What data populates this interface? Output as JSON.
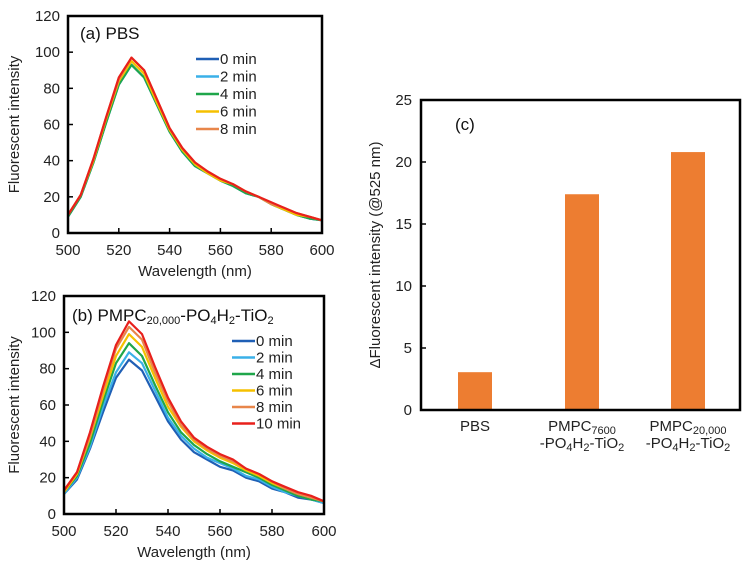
{
  "chart_data": [
    {
      "type": "line",
      "title": "(a) PBS",
      "xlabel": "Wavelength  (nm)",
      "ylabel": "Fluorescent intensity",
      "xlim": [
        500,
        600
      ],
      "ylim": [
        0,
        120
      ],
      "xticks": [
        500,
        520,
        540,
        560,
        580,
        600
      ],
      "yticks": [
        0,
        20,
        40,
        60,
        80,
        100,
        120
      ],
      "legend_position": "top-right",
      "x": [
        500,
        505,
        510,
        515,
        520,
        525,
        530,
        535,
        540,
        545,
        550,
        555,
        560,
        565,
        570,
        575,
        580,
        585,
        590,
        595,
        600
      ],
      "series": [
        {
          "name": "0 min",
          "color": "#1f5fb5",
          "values": [
            9,
            20,
            39,
            61,
            82,
            93,
            86,
            71,
            56,
            45,
            37,
            33,
            29,
            26,
            22,
            20,
            16,
            13,
            10,
            8,
            7
          ]
        },
        {
          "name": "2 min",
          "color": "#3ab0e8",
          "values": [
            9,
            20,
            39,
            61,
            82,
            93,
            86,
            71,
            56,
            45,
            37,
            33,
            29,
            26,
            22,
            20,
            16,
            13,
            10,
            8,
            7
          ]
        },
        {
          "name": "4 min",
          "color": "#1fa64a",
          "values": [
            9,
            20,
            39,
            61,
            82,
            93,
            86,
            71,
            56,
            45,
            37,
            33,
            29,
            26,
            22,
            20,
            16,
            13,
            10,
            8,
            7
          ]
        },
        {
          "name": "6 min",
          "color": "#f5c000",
          "values": [
            10,
            21,
            40,
            63,
            84,
            95,
            88,
            72,
            57,
            46,
            38,
            33,
            29,
            27,
            23,
            20,
            16,
            13,
            10,
            9,
            7
          ]
        },
        {
          "name": "8 min",
          "color": "#e8864a",
          "values": [
            10,
            21,
            41,
            64,
            85,
            97,
            90,
            74,
            58,
            47,
            39,
            34,
            30,
            27,
            23,
            20,
            16,
            14,
            11,
            9,
            7
          ]
        },
        {
          "name": "",
          "color": "#e8201c",
          "values": [
            10,
            21,
            41,
            64,
            86,
            97,
            90,
            74,
            58,
            47,
            39,
            34,
            30,
            27,
            23,
            20,
            17,
            14,
            11,
            9,
            7
          ]
        }
      ]
    },
    {
      "type": "line",
      "title_parts": [
        "(b) PMPC",
        "20,000",
        "-PO",
        "4",
        "H",
        "2",
        "-TiO",
        "2"
      ],
      "xlabel": "Wavelength  (nm)",
      "ylabel": "Fluorescent intensity",
      "xlim": [
        500,
        600
      ],
      "ylim": [
        0,
        120
      ],
      "xticks": [
        500,
        520,
        540,
        560,
        580,
        600
      ],
      "yticks": [
        0,
        20,
        40,
        60,
        80,
        100,
        120
      ],
      "legend_position": "top-right",
      "x": [
        500,
        505,
        510,
        515,
        520,
        525,
        530,
        535,
        540,
        545,
        550,
        555,
        560,
        565,
        570,
        575,
        580,
        585,
        590,
        595,
        600
      ],
      "series": [
        {
          "name": "0 min",
          "color": "#1f5fb5",
          "values": [
            11,
            19,
            36,
            56,
            75,
            85,
            79,
            65,
            51,
            41,
            34,
            30,
            26,
            24,
            20,
            18,
            14,
            12,
            9,
            8,
            6
          ]
        },
        {
          "name": "2 min",
          "color": "#3ab0e8",
          "values": [
            11,
            20,
            37,
            59,
            78,
            89,
            83,
            68,
            53,
            43,
            36,
            31,
            28,
            25,
            21,
            19,
            15,
            12,
            10,
            8,
            6
          ]
        },
        {
          "name": "4 min",
          "color": "#1fa64a",
          "values": [
            12,
            21,
            39,
            62,
            83,
            94,
            87,
            71,
            56,
            45,
            38,
            33,
            29,
            26,
            23,
            20,
            16,
            13,
            10,
            8,
            7
          ]
        },
        {
          "name": "6 min",
          "color": "#f5c000",
          "values": [
            12,
            22,
            42,
            65,
            87,
            99,
            92,
            75,
            59,
            48,
            40,
            35,
            31,
            28,
            24,
            21,
            17,
            14,
            11,
            9,
            7
          ]
        },
        {
          "name": "8 min",
          "color": "#e8864a",
          "values": [
            13,
            23,
            43,
            68,
            91,
            103,
            96,
            78,
            62,
            49,
            41,
            36,
            32,
            29,
            25,
            22,
            18,
            14,
            11,
            9,
            7
          ]
        },
        {
          "name": "10 min",
          "color": "#e8201c",
          "values": [
            13,
            23,
            45,
            70,
            93,
            106,
            99,
            81,
            64,
            51,
            42,
            37,
            33,
            30,
            25,
            22,
            18,
            15,
            12,
            10,
            7
          ]
        }
      ]
    },
    {
      "type": "bar",
      "title": "(c)",
      "ylabel": "ΔFluorescent intensity (@525 nm)",
      "ylim": [
        0,
        25
      ],
      "yticks": [
        0,
        5,
        10,
        15,
        20,
        25
      ],
      "color": "#ed7d31",
      "categories": [
        {
          "lines": [
            [
              "PBS"
            ]
          ]
        },
        {
          "lines": [
            [
              "PMPC",
              "7600"
            ],
            [
              "-PO",
              "4",
              "H",
              "2",
              "-TiO",
              "2"
            ]
          ]
        },
        {
          "lines": [
            [
              "PMPC",
              "20,000"
            ],
            [
              "-PO",
              "4",
              "H",
              "2",
              "-TiO",
              "2"
            ]
          ]
        }
      ],
      "values": [
        3.05,
        17.4,
        20.8
      ]
    }
  ]
}
